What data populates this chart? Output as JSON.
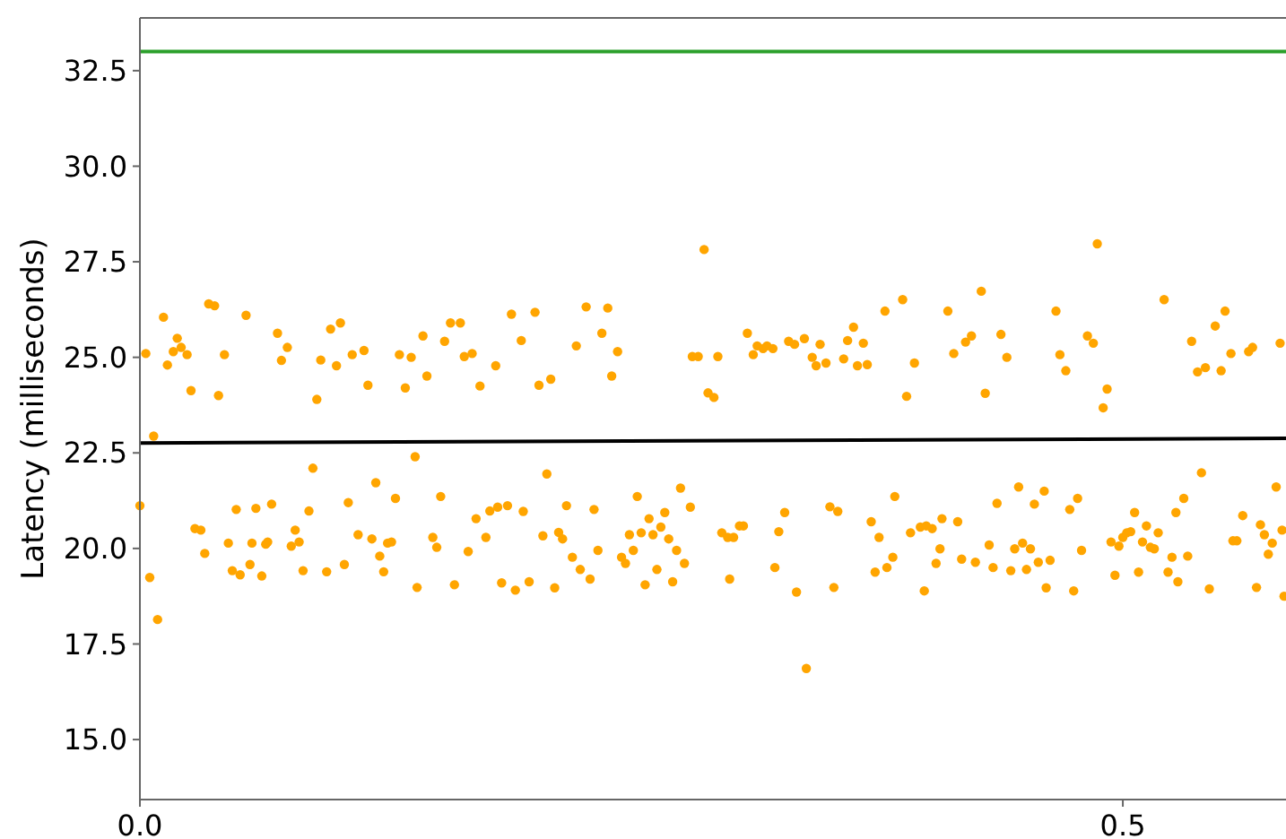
{
  "chart_data": {
    "type": "scatter",
    "ylabel": "Latency (milliseconds)",
    "xlim": [
      0,
      0.583
    ],
    "ylim": [
      13.43,
      33.88
    ],
    "xticks": [
      {
        "value": 0,
        "label": "0.0"
      },
      {
        "value": 0.5,
        "label": "0.5"
      }
    ],
    "yticks": [
      {
        "value": 15,
        "label": "15.0"
      },
      {
        "value": 17.5,
        "label": "17.5"
      },
      {
        "value": 20,
        "label": "20.0"
      },
      {
        "value": 22.5,
        "label": "22.5"
      },
      {
        "value": 25,
        "label": "25.0"
      },
      {
        "value": 27.5,
        "label": "27.5"
      },
      {
        "value": 30,
        "label": "30.0"
      },
      {
        "value": 32.5,
        "label": "32.5"
      }
    ],
    "grid": false,
    "ref_lines": [
      {
        "axis": "y",
        "value": 33.0,
        "color": "#2ca02c"
      }
    ],
    "series": [
      {
        "marker": "circle",
        "color": "#ffa500",
        "x": [
          0.003,
          0.012,
          0.014,
          0.017,
          0.019,
          0.021,
          0.024,
          0.026,
          0.035,
          0.038,
          0.04,
          0.043,
          0.054,
          0.07,
          0.072,
          0.075,
          0.09,
          0.092,
          0.097,
          0.1,
          0.102,
          0.108,
          0.114,
          0.116,
          0.132,
          0.135,
          0.138,
          0.144,
          0.146,
          0.155,
          0.158,
          0.163,
          0.165,
          0.169,
          0.173,
          0.181,
          0.189,
          0.007,
          0.0,
          0.005,
          0.009,
          0.028,
          0.031,
          0.033,
          0.045,
          0.047,
          0.049,
          0.051,
          0.056,
          0.057,
          0.059,
          0.062,
          0.064,
          0.065,
          0.067,
          0.077,
          0.079,
          0.081,
          0.083,
          0.086,
          0.088,
          0.095,
          0.104,
          0.106,
          0.111,
          0.118,
          0.12,
          0.122,
          0.124,
          0.126,
          0.128,
          0.13,
          0.14,
          0.141,
          0.149,
          0.151,
          0.153,
          0.16,
          0.167,
          0.171,
          0.176,
          0.178,
          0.182,
          0.184,
          0.187,
          0.191,
          0.194,
          0.201,
          0.203,
          0.209,
          0.222,
          0.227,
          0.235,
          0.238,
          0.24,
          0.243,
          0.287,
          0.281,
          0.284,
          0.289,
          0.292,
          0.294,
          0.309,
          0.312,
          0.314,
          0.317,
          0.319,
          0.322,
          0.33,
          0.333,
          0.338,
          0.342,
          0.344,
          0.346,
          0.349,
          0.358,
          0.36,
          0.363,
          0.365,
          0.368,
          0.37,
          0.379,
          0.195,
          0.198,
          0.205,
          0.207,
          0.211,
          0.213,
          0.215,
          0.217,
          0.22,
          0.224,
          0.229,
          0.231,
          0.233,
          0.245,
          0.247,
          0.249,
          0.251,
          0.253,
          0.255,
          0.257,
          0.259,
          0.261,
          0.263,
          0.265,
          0.267,
          0.269,
          0.271,
          0.273,
          0.275,
          0.277,
          0.28,
          0.296,
          0.299,
          0.3,
          0.302,
          0.305,
          0.307,
          0.323,
          0.325,
          0.328,
          0.334,
          0.339,
          0.351,
          0.353,
          0.355,
          0.372,
          0.374,
          0.376,
          0.38,
          0.383,
          0.384,
          0.388,
          0.39,
          0.394,
          0.411,
          0.414,
          0.42,
          0.423,
          0.428,
          0.43,
          0.438,
          0.441,
          0.466,
          0.468,
          0.471,
          0.482,
          0.485,
          0.487,
          0.49,
          0.492,
          0.521,
          0.535,
          0.538,
          0.542,
          0.547,
          0.55,
          0.552,
          0.555,
          0.564,
          0.566,
          0.58,
          0.392,
          0.397,
          0.4,
          0.403,
          0.399,
          0.405,
          0.407,
          0.408,
          0.416,
          0.418,
          0.425,
          0.432,
          0.434,
          0.436,
          0.443,
          0.445,
          0.447,
          0.449,
          0.451,
          0.453,
          0.455,
          0.457,
          0.46,
          0.461,
          0.463,
          0.473,
          0.475,
          0.477,
          0.479,
          0.494,
          0.496,
          0.498,
          0.5,
          0.502,
          0.504,
          0.506,
          0.508,
          0.51,
          0.512,
          0.514,
          0.516,
          0.518,
          0.523,
          0.525,
          0.527,
          0.528,
          0.531,
          0.533,
          0.54,
          0.544,
          0.556,
          0.558,
          0.561,
          0.568,
          0.57,
          0.572,
          0.574,
          0.576,
          0.578,
          0.581,
          0.582
        ],
        "values": [
          25.1,
          26.05,
          24.8,
          25.15,
          25.5,
          25.26,
          25.07,
          24.13,
          26.4,
          26.35,
          24.0,
          25.07,
          26.1,
          25.63,
          24.92,
          25.26,
          23.9,
          24.93,
          25.74,
          24.78,
          25.9,
          25.07,
          25.18,
          24.27,
          25.07,
          24.2,
          25.0,
          25.56,
          24.51,
          25.42,
          25.9,
          25.9,
          25.02,
          25.1,
          24.25,
          24.78,
          26.13,
          22.94,
          21.12,
          19.24,
          18.14,
          20.52,
          20.48,
          19.87,
          20.14,
          19.42,
          21.02,
          19.31,
          19.58,
          20.14,
          21.05,
          19.28,
          20.11,
          20.17,
          21.16,
          20.06,
          20.48,
          20.17,
          19.42,
          20.98,
          22.1,
          19.39,
          19.58,
          21.2,
          20.36,
          20.25,
          21.72,
          19.8,
          19.39,
          20.14,
          20.17,
          21.31,
          22.4,
          18.98,
          20.29,
          20.03,
          21.36,
          19.05,
          19.92,
          20.78,
          20.29,
          20.98,
          21.08,
          19.1,
          21.12,
          18.91,
          25.44,
          26.18,
          24.27,
          24.43,
          25.3,
          26.32,
          25.63,
          26.29,
          24.51,
          25.15,
          27.82,
          25.02,
          25.02,
          24.07,
          23.95,
          25.02,
          25.63,
          25.07,
          25.3,
          25.23,
          25.3,
          25.23,
          25.42,
          25.34,
          25.49,
          25.0,
          24.78,
          25.34,
          24.85,
          24.96,
          25.44,
          25.79,
          24.78,
          25.37,
          24.81,
          26.21,
          20.97,
          19.13,
          20.33,
          21.95,
          18.97,
          20.42,
          20.25,
          21.12,
          19.77,
          19.45,
          19.2,
          21.02,
          19.95,
          19.77,
          19.61,
          20.36,
          19.95,
          21.36,
          20.41,
          19.05,
          20.78,
          20.36,
          19.45,
          20.56,
          20.94,
          20.25,
          19.13,
          19.95,
          21.58,
          19.61,
          21.08,
          20.41,
          20.29,
          19.2,
          20.29,
          20.59,
          20.59,
          19.5,
          20.44,
          20.94,
          18.86,
          16.86,
          21.09,
          18.98,
          20.97,
          20.7,
          19.38,
          20.29,
          19.5,
          19.77,
          21.36,
          26.51,
          23.98,
          24.85,
          26.21,
          25.1,
          25.4,
          25.56,
          26.73,
          24.06,
          25.6,
          25.0,
          26.21,
          25.07,
          24.65,
          25.56,
          25.37,
          27.97,
          23.68,
          24.17,
          26.51,
          25.42,
          24.62,
          24.73,
          25.82,
          24.65,
          26.21,
          25.1,
          25.15,
          25.26,
          25.37,
          20.41,
          20.56,
          20.59,
          20.52,
          18.89,
          19.61,
          19.99,
          20.78,
          20.7,
          19.72,
          19.64,
          20.09,
          19.5,
          21.18,
          19.42,
          19.99,
          21.61,
          20.14,
          19.45,
          19.99,
          21.16,
          19.64,
          21.5,
          18.97,
          19.69,
          21.02,
          18.89,
          21.31,
          19.95,
          20.17,
          19.3,
          20.06,
          20.29,
          20.41,
          20.44,
          20.94,
          19.38,
          20.17,
          20.59,
          20.03,
          19.99,
          20.41,
          19.38,
          19.77,
          20.94,
          19.13,
          21.31,
          19.8,
          21.98,
          18.94,
          20.2,
          20.2,
          20.86,
          18.98,
          20.62,
          20.36,
          19.85,
          20.14,
          21.61,
          20.48,
          18.75
        ]
      },
      {
        "type": "line",
        "color": "#000000",
        "x": [
          0,
          0.583
        ],
        "values": [
          22.76,
          22.88
        ]
      }
    ]
  }
}
